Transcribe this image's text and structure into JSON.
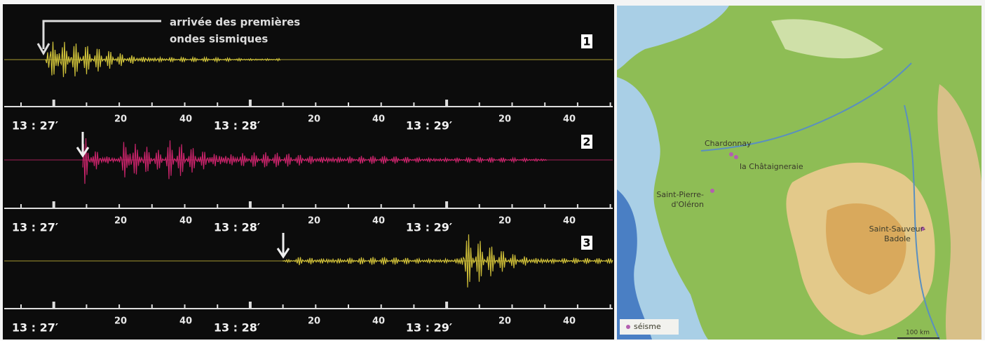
{
  "seismograms": {
    "annotation": [
      "arrivée des premières",
      "ondes sismiques"
    ],
    "traces": [
      {
        "label": "1"
      },
      {
        "label": "2"
      },
      {
        "label": "3"
      }
    ],
    "time_labels": [
      "13 : 27′",
      "20",
      "40",
      "13 : 28′",
      "20",
      "40",
      "13 : 29′",
      "20",
      "40"
    ]
  },
  "map": {
    "places": [
      {
        "lines": [
          "Chardonnay"
        ]
      },
      {
        "lines": [
          "la Châtaigneraie"
        ]
      },
      {
        "lines": [
          "Saint-Pierre-",
          "d'Oléron"
        ]
      },
      {
        "lines": [
          "Saint-Sauveur-",
          "Badole"
        ]
      }
    ],
    "legend": "séisme",
    "scale": "100 km"
  }
}
